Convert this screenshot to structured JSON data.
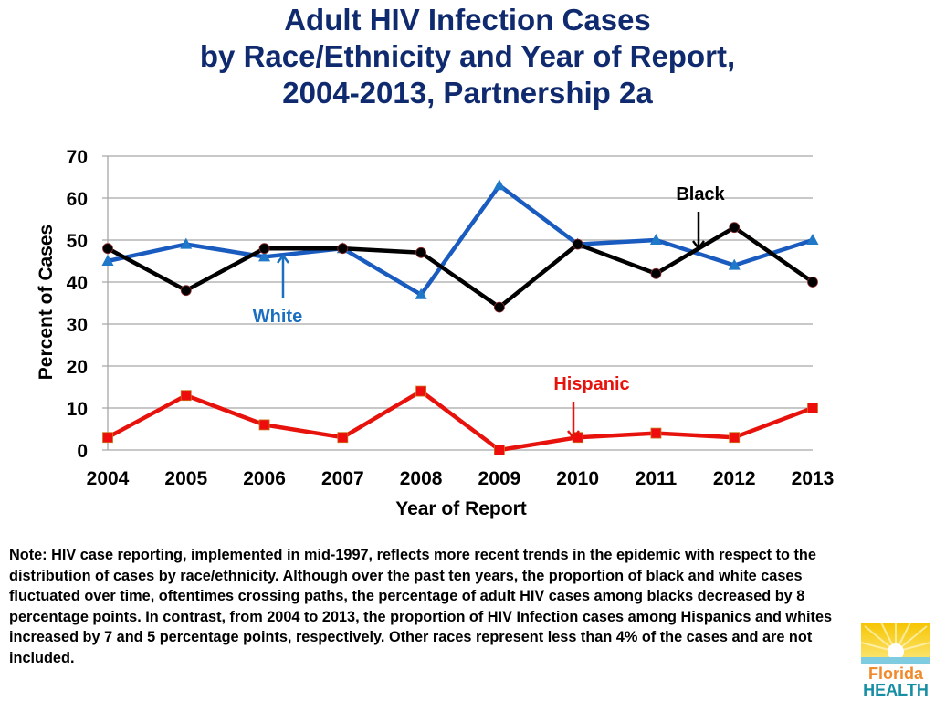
{
  "title_lines": [
    "Adult HIV Infection Cases",
    "by Race/Ethnicity and Year of Report,",
    "2004-2013, Partnership 2a"
  ],
  "chart_data": {
    "type": "line",
    "title": "Adult HIV Infection Cases by Race/Ethnicity and Year of Report, 2004-2013, Partnership 2a",
    "xlabel": "Year of Report",
    "ylabel": "Percent of Cases",
    "x": [
      "2004",
      "2005",
      "2006",
      "2007",
      "2008",
      "2009",
      "2010",
      "2011",
      "2012",
      "2013"
    ],
    "ylim": [
      0,
      70
    ],
    "yticks": [
      0,
      10,
      20,
      30,
      40,
      50,
      60,
      70
    ],
    "grid": true,
    "legend": "none (inline annotations with arrows)",
    "series": [
      {
        "name": "White",
        "color": "#1a5bbf",
        "marker": "triangle",
        "values": [
          45,
          49,
          46,
          48,
          37,
          63,
          49,
          50,
          44,
          50
        ]
      },
      {
        "name": "Black",
        "color": "#000000",
        "marker": "circle",
        "values": [
          48,
          38,
          48,
          48,
          47,
          34,
          49,
          42,
          53,
          40
        ]
      },
      {
        "name": "Hispanic",
        "color": "#e8120c",
        "marker": "square",
        "values": [
          3,
          13,
          6,
          3,
          14,
          0,
          3,
          4,
          3,
          10
        ]
      }
    ],
    "annotations": [
      {
        "text": "White",
        "color": "#1a6fc0",
        "points_to": {
          "series": "White",
          "x": "2006"
        }
      },
      {
        "text": "Black",
        "color": "#000000",
        "points_to": {
          "series": "Black",
          "x": "between 2011 and 2012"
        }
      },
      {
        "text": "Hispanic",
        "color": "#e8120c",
        "points_to": {
          "series": "Hispanic",
          "x": "2010"
        }
      }
    ]
  },
  "note": "Note: HIV case reporting, implemented in mid-1997, reflects more recent trends in the epidemic with respect to the distribution of cases by race/ethnicity.  Although over the past ten years, the proportion of black and white cases fluctuated over time, oftentimes crossing paths, the percentage of adult  HIV cases among blacks decreased by 8 percentage points.  In contrast, from 2004 to 2013, the proportion of HIV Infection cases among Hispanics and whites increased by 7 and 5 percentage points, respectively.  Other races represent less than 4% of the cases and are not included.",
  "logo": {
    "line1": "Florida",
    "line2": "HEALTH",
    "icon": "sunrise-logo-icon"
  }
}
